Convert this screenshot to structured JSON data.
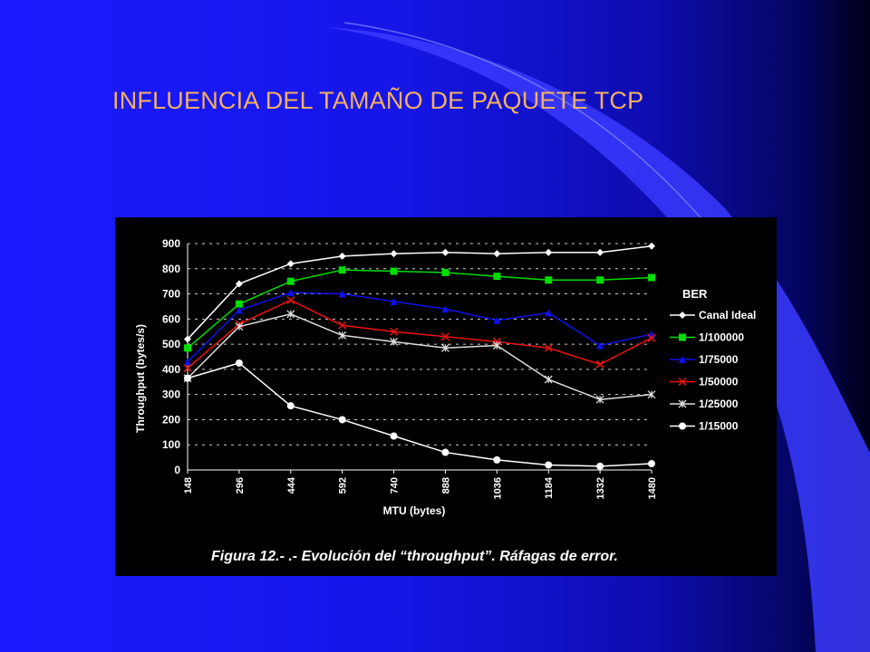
{
  "slide": {
    "title": "INFLUENCIA DEL TAMAÑO DE PAQUETE TCP",
    "caption": "Figura 12.- .- Evolución del “throughput”. Ráfagas de error."
  },
  "colors": {
    "title": "#f5b060",
    "background_left": "#1a1aff",
    "background_right": "#000018",
    "chart_background": "#000000"
  },
  "chart_data": {
    "type": "line",
    "xlabel": "MTU (bytes)",
    "ylabel": "Throughput (bytes/s)",
    "categories": [
      148,
      296,
      444,
      592,
      740,
      888,
      1036,
      1184,
      1332,
      1480
    ],
    "ylim": [
      0,
      900
    ],
    "yticks": [
      0,
      100,
      200,
      300,
      400,
      500,
      600,
      700,
      800,
      900
    ],
    "grid": "horizontal dashed",
    "legend": {
      "title": "BER",
      "position": "right"
    },
    "series": [
      {
        "name": "Canal Ideal",
        "color": "#ffffff",
        "marker": "diamond",
        "values": [
          520,
          740,
          820,
          850,
          860,
          865,
          860,
          865,
          865,
          890
        ]
      },
      {
        "name": "1/100000",
        "color": "#00dd00",
        "marker": "square",
        "values": [
          485,
          660,
          750,
          795,
          790,
          785,
          770,
          755,
          755,
          765
        ]
      },
      {
        "name": "1/75000",
        "color": "#1010ee",
        "marker": "triangle",
        "values": [
          430,
          635,
          705,
          700,
          670,
          640,
          595,
          625,
          495,
          540
        ]
      },
      {
        "name": "1/50000",
        "color": "#ee1111",
        "marker": "x",
        "values": [
          405,
          580,
          675,
          575,
          550,
          530,
          510,
          485,
          420,
          525
        ]
      },
      {
        "name": "1/25000",
        "color": "#dddddd",
        "marker": "star",
        "values": [
          365,
          570,
          620,
          535,
          510,
          485,
          495,
          360,
          280,
          300
        ]
      },
      {
        "name": "1/15000",
        "color": "#ffffff",
        "marker": "circle",
        "values": [
          365,
          425,
          255,
          200,
          135,
          70,
          40,
          20,
          15,
          25
        ]
      }
    ]
  }
}
